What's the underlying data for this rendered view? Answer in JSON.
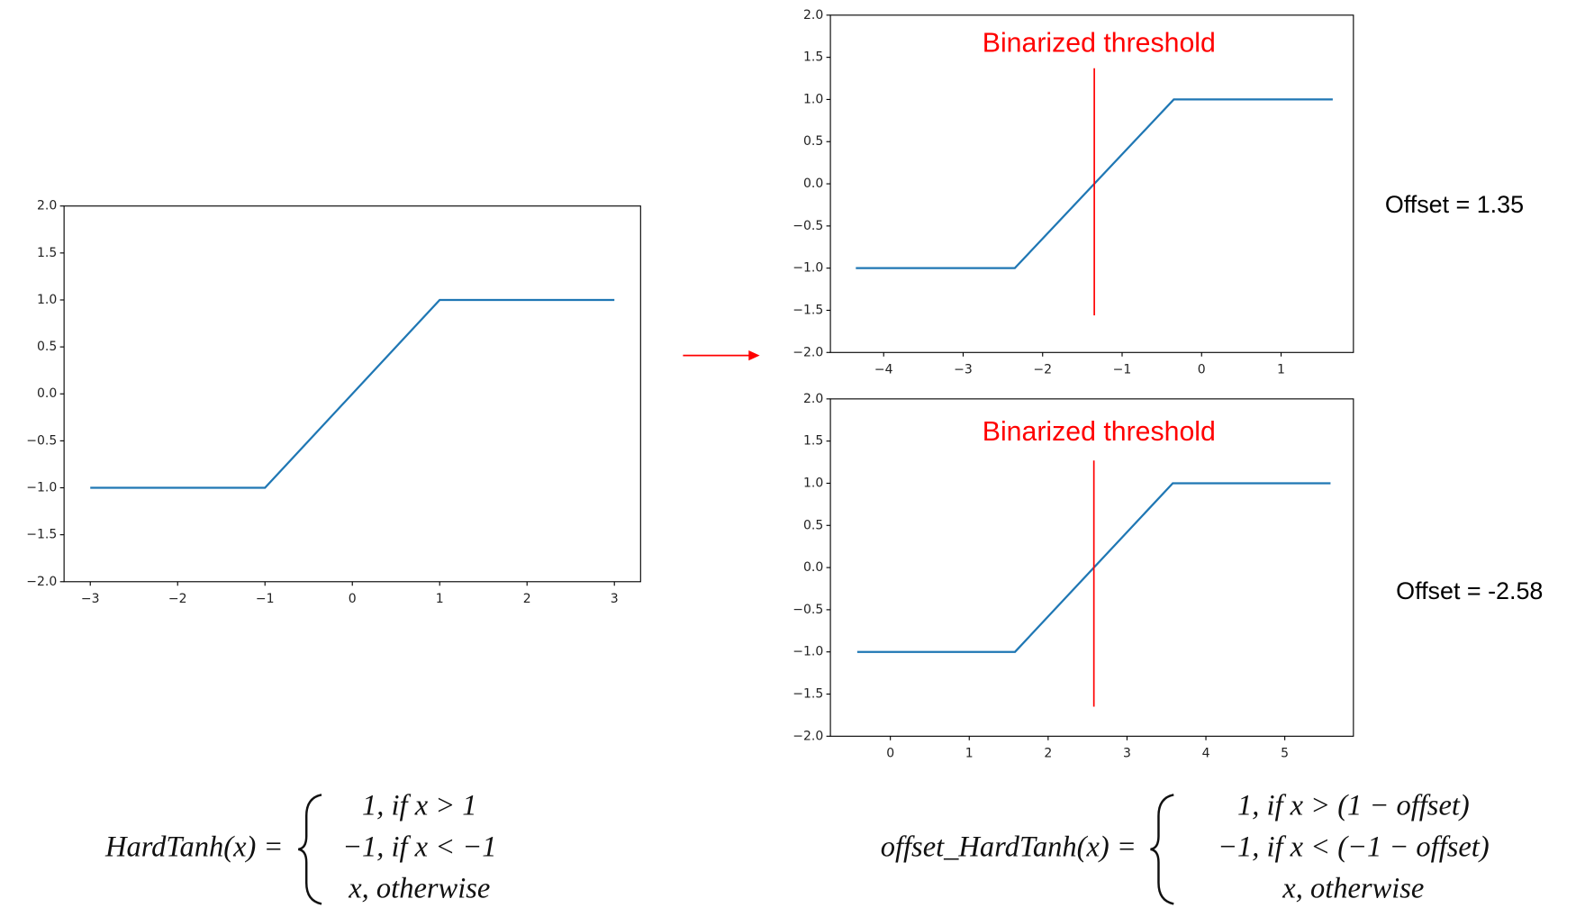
{
  "chart_data": [
    {
      "type": "line",
      "xlim": [
        -3.3,
        3.3
      ],
      "xticks": [
        {
          "value": -3,
          "label": "−3"
        },
        {
          "value": -2,
          "label": "−2"
        },
        {
          "value": -1,
          "label": "−1"
        },
        0,
        1,
        2,
        3
      ],
      "ylim": [
        -2,
        2
      ],
      "yticks": [
        {
          "value": -2,
          "label": "−2.0"
        },
        {
          "value": -1.5,
          "label": "−1.5"
        },
        {
          "value": -1,
          "label": "−1.0"
        },
        {
          "value": -0.5,
          "label": "−0.5"
        },
        {
          "value": 0,
          "label": "0.0"
        },
        {
          "value": 0.5,
          "label": "0.5"
        },
        {
          "value": 1,
          "label": "1.0"
        },
        {
          "value": 1.5,
          "label": "1.5"
        },
        {
          "value": 2,
          "label": "2.0"
        }
      ],
      "series": [
        {
          "color": "#1f77b4",
          "x": [
            -3,
            -1,
            1,
            3
          ],
          "values": [
            -1,
            -1,
            1,
            1
          ]
        }
      ]
    },
    {
      "type": "line",
      "xlim": [
        -4.67,
        1.91
      ],
      "xticks": [
        {
          "value": -4,
          "label": "−4"
        },
        {
          "value": -3,
          "label": "−3"
        },
        {
          "value": -2,
          "label": "−2"
        },
        {
          "value": -1,
          "label": "−1"
        },
        0,
        1
      ],
      "ylim": [
        -2,
        2
      ],
      "yticks": [
        {
          "value": -2,
          "label": "−2.0"
        },
        {
          "value": -1.5,
          "label": "−1.5"
        },
        {
          "value": -1,
          "label": "−1.0"
        },
        {
          "value": -0.5,
          "label": "−0.5"
        },
        {
          "value": 0,
          "label": "0.0"
        },
        {
          "value": 0.5,
          "label": "0.5"
        },
        {
          "value": 1,
          "label": "1.0"
        },
        {
          "value": 1.5,
          "label": "1.5"
        },
        {
          "value": 2,
          "label": "2.0"
        }
      ],
      "series": [
        {
          "color": "#1f77b4",
          "x": [
            -4.35,
            -2.35,
            -0.35,
            1.65
          ],
          "values": [
            -1,
            -1,
            1,
            1
          ]
        }
      ],
      "threshold": {
        "x": -1.35,
        "y": [
          -1.56,
          1.37
        ],
        "color": "#ff0000",
        "label": "Binarized threshold"
      },
      "note": "Offset = 1.35"
    },
    {
      "type": "line",
      "xlim": [
        -0.76,
        5.87
      ],
      "xticks": [
        0,
        1,
        2,
        3,
        4,
        5
      ],
      "ylim": [
        -2,
        2
      ],
      "yticks": [
        {
          "value": -2,
          "label": "−2.0"
        },
        {
          "value": -1.5,
          "label": "−1.5"
        },
        {
          "value": -1,
          "label": "−1.0"
        },
        {
          "value": -0.5,
          "label": "−0.5"
        },
        {
          "value": 0,
          "label": "0.0"
        },
        {
          "value": 0.5,
          "label": "0.5"
        },
        {
          "value": 1,
          "label": "1.0"
        },
        {
          "value": 1.5,
          "label": "1.5"
        },
        {
          "value": 2,
          "label": "2.0"
        }
      ],
      "series": [
        {
          "color": "#1f77b4",
          "x": [
            -0.42,
            1.58,
            3.58,
            5.58
          ],
          "values": [
            -1,
            -1,
            1,
            1
          ]
        }
      ],
      "threshold": {
        "x": 2.58,
        "y": [
          -1.65,
          1.27
        ],
        "color": "#ff0000",
        "label": "Binarized threshold"
      },
      "note": "Offset = -2.58"
    }
  ],
  "formulas": [
    {
      "lhs": "HardTanh(x) =",
      "cases": [
        "1, if x > 1",
        "−1, if x < −1",
        "x, otherwise"
      ]
    },
    {
      "lhs": "offset_HardTanh(x) =",
      "cases": [
        "1, if x > (1 − offset)",
        "−1, if x < (−1 − offset)",
        "x, otherwise"
      ]
    }
  ]
}
